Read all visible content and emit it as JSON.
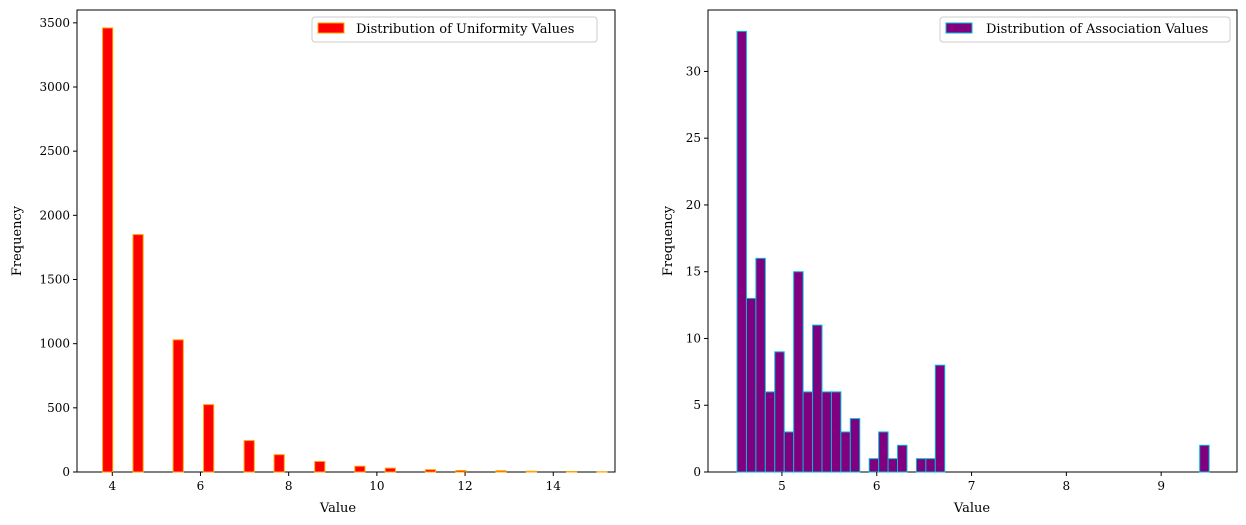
{
  "chart_data": [
    {
      "type": "bar",
      "legend": "Distribution of Uniformity Values",
      "legend_position": "top-right",
      "xlabel": "Value",
      "ylabel": "Frequency",
      "xlim": [
        3.2,
        15.4
      ],
      "ylim": [
        0,
        3600
      ],
      "xticks": [
        4,
        6,
        8,
        10,
        12,
        14
      ],
      "yticks": [
        0,
        500,
        1000,
        1500,
        2000,
        2500,
        3000,
        3500
      ],
      "bin_width": 0.23,
      "fill_color": "#ff0000",
      "edge_color": "#ffa500",
      "bins": [
        {
          "x": 3.78,
          "value": 3460
        },
        {
          "x": 4.47,
          "value": 1850
        },
        {
          "x": 5.38,
          "value": 1030
        },
        {
          "x": 6.07,
          "value": 525
        },
        {
          "x": 6.99,
          "value": 245
        },
        {
          "x": 7.67,
          "value": 135
        },
        {
          "x": 8.59,
          "value": 82
        },
        {
          "x": 9.5,
          "value": 45
        },
        {
          "x": 10.19,
          "value": 30
        },
        {
          "x": 11.1,
          "value": 18
        },
        {
          "x": 11.79,
          "value": 12
        },
        {
          "x": 12.7,
          "value": 10
        },
        {
          "x": 13.39,
          "value": 6
        },
        {
          "x": 14.3,
          "value": 4
        },
        {
          "x": 14.99,
          "value": 2
        }
      ]
    },
    {
      "type": "bar",
      "legend": "Distribution of Association Values",
      "legend_position": "top-right",
      "xlabel": "Value",
      "ylabel": "Frequency",
      "xlim": [
        4.22,
        9.8
      ],
      "ylim": [
        0,
        34.6
      ],
      "xticks": [
        5,
        6,
        7,
        8,
        9
      ],
      "yticks": [
        0,
        5,
        10,
        15,
        20,
        25,
        30
      ],
      "bin_start": 4.526,
      "bin_width": 0.0996,
      "fill_color": "#800080",
      "edge_color": "#00bcd4",
      "values": [
        33,
        13,
        16,
        6,
        9,
        3,
        15,
        6,
        11,
        6,
        6,
        3,
        4,
        0,
        1,
        3,
        1,
        2,
        0,
        1,
        1,
        8,
        0,
        0,
        0,
        0,
        0,
        0,
        0,
        0,
        0,
        0,
        0,
        0,
        0,
        0,
        0,
        0,
        0,
        0,
        0,
        0,
        0,
        0,
        0,
        0,
        0,
        0,
        0,
        2
      ]
    }
  ]
}
